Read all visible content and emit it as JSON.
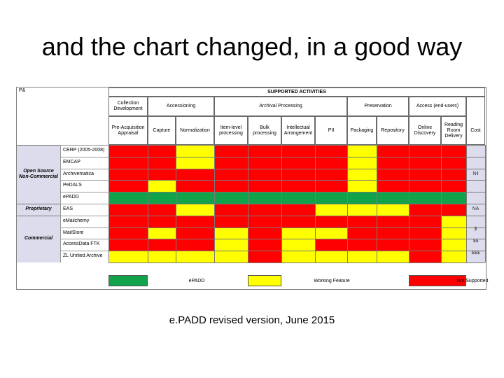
{
  "slide": {
    "title": "and the chart changed, in a good way",
    "caption": "e.PADD revised version, June  2015"
  },
  "colors": {
    "supported": "#12a24a",
    "working": "#ffff00",
    "not_supported": "#ff0000",
    "category_bg": "#dcdcec"
  },
  "chart_data": {
    "type": "table",
    "corner_label": "P&",
    "header_group": "SUPPORTED ACTIVITIES",
    "groups": [
      {
        "label": "Collection Development",
        "span": 1
      },
      {
        "label": "Accessioning",
        "span": 2
      },
      {
        "label": "Archival Processing",
        "span": 4
      },
      {
        "label": "Preservation",
        "span": 2
      },
      {
        "label": "Access (end-users)",
        "span": 2
      }
    ],
    "columns": [
      "Pre-Acquisition Appraisal",
      "Capture",
      "Normalization",
      "Item-level processing",
      "Bulk processing",
      "Intellectual Arrangement",
      "PII",
      "Packaging",
      "Repository",
      "Online Discovery",
      "Reading Room Delivery"
    ],
    "cost_header": "Cost",
    "categories": [
      {
        "label": "Open Source Non-Commercial",
        "rows": 5,
        "cost": "Nil"
      },
      {
        "label": "Proprietary",
        "rows": 1,
        "cost": "NA"
      },
      {
        "label": "Commercial",
        "rows": 4,
        "costs": [
          "$",
          "$$",
          "$$$"
        ]
      }
    ],
    "tools": [
      {
        "name": "CERP (2005-2008)",
        "values": [
          "N",
          "N",
          "W",
          "N",
          "N",
          "N",
          "N",
          "W",
          "N",
          "N",
          "N"
        ]
      },
      {
        "name": "EMCAP",
        "values": [
          "N",
          "N",
          "W",
          "N",
          "N",
          "N",
          "N",
          "W",
          "N",
          "N",
          "N"
        ]
      },
      {
        "name": "Archivematica",
        "values": [
          "N",
          "N",
          "N",
          "N",
          "N",
          "N",
          "N",
          "W",
          "N",
          "N",
          "N"
        ]
      },
      {
        "name": "PeDALS",
        "values": [
          "N",
          "W",
          "N",
          "N",
          "N",
          "N",
          "N",
          "W",
          "N",
          "N",
          "N"
        ]
      },
      {
        "name": "ePADD",
        "values": [
          "S",
          "S",
          "S",
          "S",
          "S",
          "S",
          "S",
          "S",
          "S",
          "S",
          "S"
        ]
      },
      {
        "name": "EAS",
        "values": [
          "N",
          "N",
          "W",
          "N",
          "N",
          "N",
          "W",
          "W",
          "W",
          "N",
          "N"
        ]
      },
      {
        "name": "eMailchemy",
        "values": [
          "N",
          "N",
          "N",
          "N",
          "N",
          "N",
          "N",
          "N",
          "N",
          "N",
          "W"
        ]
      },
      {
        "name": "MailStore",
        "values": [
          "N",
          "W",
          "N",
          "W",
          "N",
          "W",
          "W",
          "N",
          "N",
          "N",
          "W"
        ]
      },
      {
        "name": "AccessData FTK",
        "values": [
          "N",
          "N",
          "N",
          "W",
          "N",
          "W",
          "N",
          "N",
          "N",
          "N",
          "W"
        ]
      },
      {
        "name": "ZL Unified Archive",
        "values": [
          "W",
          "W",
          "W",
          "W",
          "N",
          "W",
          "W",
          "W",
          "W",
          "N",
          "W"
        ]
      }
    ],
    "legend": [
      {
        "key": "S",
        "label": "ePADD"
      },
      {
        "key": "W",
        "label": "Working Feature"
      },
      {
        "key": "N",
        "label": "Not Supported"
      }
    ]
  }
}
